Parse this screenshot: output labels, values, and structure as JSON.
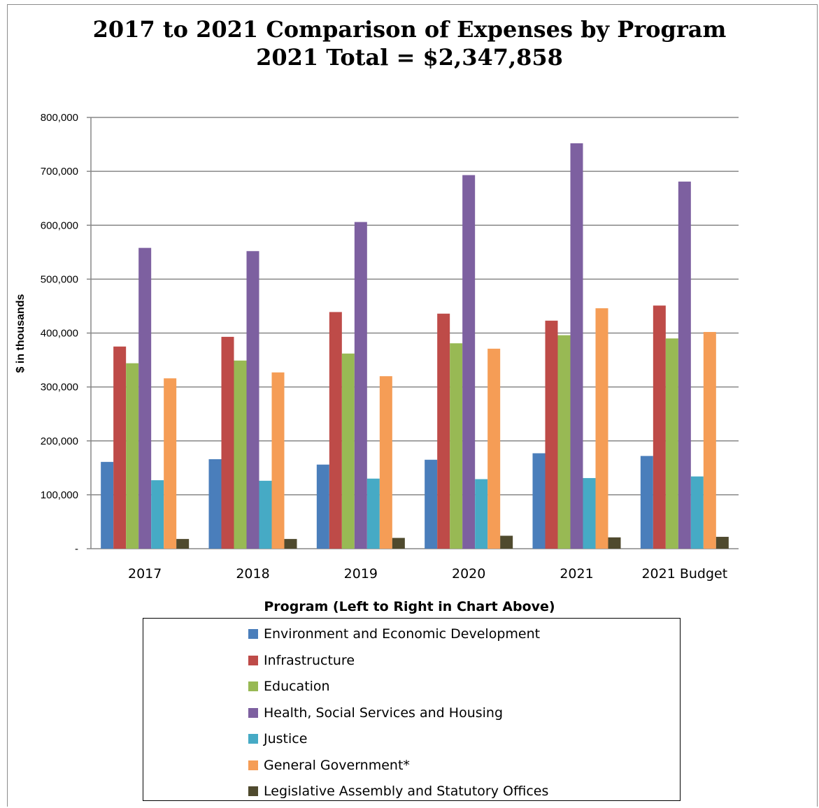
{
  "chart_data": {
    "type": "bar",
    "title": "2017 to 2021 Comparison of Expenses by Program",
    "subtitle": "2021 Total = $2,347,858",
    "xlabel": "Program (Left to Right in Chart Above)",
    "ylabel": "$ in thousands",
    "ylim": [
      0,
      800000
    ],
    "yticks": [
      0,
      100000,
      200000,
      300000,
      400000,
      500000,
      600000,
      700000,
      800000
    ],
    "ytick_labels": [
      "-",
      "100,000",
      "200,000",
      "300,000",
      "400,000",
      "500,000",
      "600,000",
      "700,000",
      "800,000"
    ],
    "grid": true,
    "legend_position": "bottom",
    "categories": [
      "2017",
      "2018",
      "2019",
      "2020",
      "2021",
      "2021 Budget"
    ],
    "series": [
      {
        "name": "Environment and Economic Development",
        "color": "#4a7ebb",
        "values": [
          161000,
          166000,
          156000,
          165000,
          177000,
          172000
        ]
      },
      {
        "name": "Infrastructure",
        "color": "#be4b48",
        "values": [
          375000,
          393000,
          439000,
          436000,
          423000,
          451000
        ]
      },
      {
        "name": "Education",
        "color": "#98b954",
        "values": [
          344000,
          349000,
          362000,
          381000,
          396000,
          390000
        ]
      },
      {
        "name": "Health, Social Services and Housing",
        "color": "#7d60a0",
        "values": [
          558000,
          552000,
          606000,
          693000,
          752000,
          681000
        ]
      },
      {
        "name": "Justice",
        "color": "#46aac5",
        "values": [
          127000,
          126000,
          130000,
          129000,
          131000,
          134000
        ]
      },
      {
        "name": "General Government*",
        "color": "#f59d56",
        "values": [
          316000,
          327000,
          320000,
          371000,
          446000,
          402000
        ]
      },
      {
        "name": "Legislative Assembly and Statutory Offices",
        "color": "#4f4a2e",
        "values": [
          18000,
          18000,
          20000,
          24000,
          21000,
          22000
        ]
      }
    ]
  }
}
